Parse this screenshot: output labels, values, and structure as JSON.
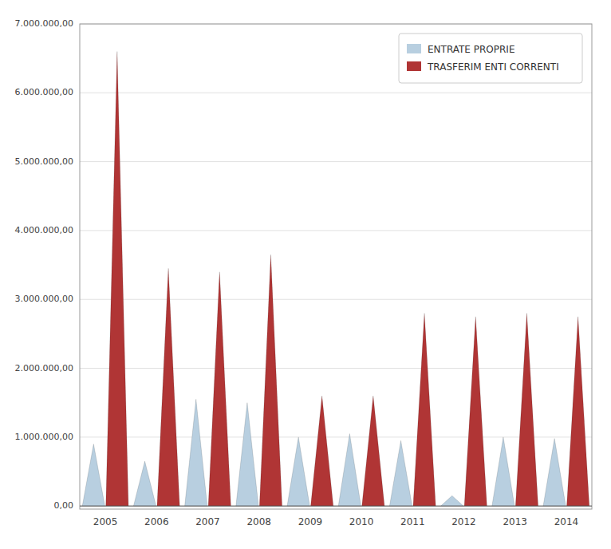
{
  "chart_data": {
    "type": "bar",
    "categories": [
      "2005",
      "2006",
      "2007",
      "2008",
      "2009",
      "2010",
      "2011",
      "2012",
      "2013",
      "2014"
    ],
    "series": [
      {
        "name": "ENTRATE PROPRIE",
        "color": "#b8cfe0",
        "values": [
          900000,
          650000,
          1550000,
          1500000,
          1000000,
          1050000,
          950000,
          150000,
          1000000,
          980000
        ]
      },
      {
        "name": "TRASFERIM ENTI CORRENTI",
        "color": "#b03535",
        "values": [
          6600000,
          3450000,
          3400000,
          3650000,
          1600000,
          1600000,
          2800000,
          2750000,
          2800000,
          2750000
        ]
      }
    ],
    "ylim": [
      -45000,
      7000000
    ],
    "yticks": [
      {
        "value": 0,
        "label": "0,00"
      },
      {
        "value": 1000000,
        "label": "1.000.000,00"
      },
      {
        "value": 2000000,
        "label": "2.000.000,00"
      },
      {
        "value": 3000000,
        "label": "3.000.000,00"
      },
      {
        "value": 4000000,
        "label": "4.000.000,00"
      },
      {
        "value": 5000000,
        "label": "5.000.000,00"
      },
      {
        "value": 6000000,
        "label": "6.000.000,00"
      },
      {
        "value": 7000000,
        "label": "7.000.000,00"
      }
    ],
    "grid": true,
    "legend": "upper right"
  }
}
